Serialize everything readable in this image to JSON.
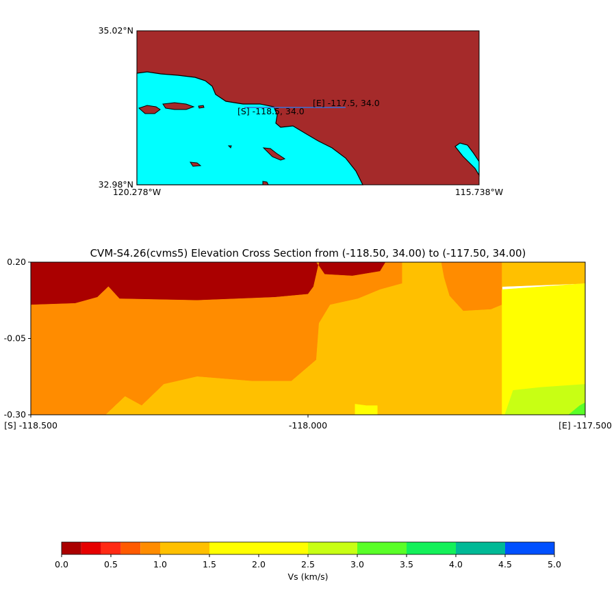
{
  "map": {
    "lat_top": "35.02°N",
    "lat_bottom": "32.98°N",
    "lon_left": "120.278°W",
    "lon_right": "115.738°W",
    "start_label": "[S] -118.5, 34.0",
    "end_label": "[E] -117.5, 34.0",
    "land_color": "#a52a2a",
    "water_color": "#00ffff",
    "line_color": "#3b6fd6"
  },
  "chart_data": {
    "type": "heatmap",
    "title": "CVM-S4.26(cvms5) Elevation Cross Section from (-118.50, 34.00) to (-117.50, 34.00)",
    "x_range": [
      -118.5,
      -117.5
    ],
    "y_range": [
      -0.3,
      0.2
    ],
    "x_tick_labels": [
      "[S] -118.500",
      "-118.000",
      "[E] -117.500"
    ],
    "y_tick_labels": [
      "0.20",
      "-0.05",
      "-0.30"
    ],
    "colorbar": {
      "label": "Vs (km/s)",
      "tick_labels": [
        "0.0",
        "0.5",
        "1.0",
        "1.5",
        "2.0",
        "2.5",
        "3.0",
        "3.5",
        "4.0",
        "4.5",
        "5.0"
      ],
      "bins": [
        {
          "from": 0.0,
          "to": 0.2,
          "color": "#aa0000"
        },
        {
          "from": 0.2,
          "to": 0.4,
          "color": "#e60000"
        },
        {
          "from": 0.4,
          "to": 0.6,
          "color": "#ff2a14"
        },
        {
          "from": 0.6,
          "to": 0.8,
          "color": "#ff5a00"
        },
        {
          "from": 0.8,
          "to": 1.0,
          "color": "#ff8c00"
        },
        {
          "from": 1.0,
          "to": 1.5,
          "color": "#ffc000"
        },
        {
          "from": 1.5,
          "to": 2.5,
          "color": "#ffff00"
        },
        {
          "from": 2.5,
          "to": 3.0,
          "color": "#c8ff14"
        },
        {
          "from": 3.0,
          "to": 3.5,
          "color": "#5aff28"
        },
        {
          "from": 3.5,
          "to": 4.0,
          "color": "#14f05a"
        },
        {
          "from": 4.0,
          "to": 4.5,
          "color": "#00b996"
        },
        {
          "from": 4.5,
          "to": 5.0,
          "color": "#0050ff"
        }
      ]
    },
    "layers": [
      {
        "vs_range": "0.0-0.2",
        "color": "#aa0000",
        "region": "near-surface west and central",
        "points": [
          [
            -118.5,
            0.2
          ],
          [
            -117.98,
            0.2
          ],
          [
            -117.985,
            0.16
          ],
          [
            -117.99,
            0.12
          ],
          [
            -118.0,
            0.095
          ],
          [
            -118.06,
            0.085
          ],
          [
            -118.2,
            0.075
          ],
          [
            -118.34,
            0.08
          ],
          [
            -118.36,
            0.12
          ],
          [
            -118.38,
            0.085
          ],
          [
            -118.42,
            0.065
          ],
          [
            -118.5,
            0.06
          ]
        ]
      },
      {
        "vs_range": "0.0-0.2",
        "color": "#aa0000",
        "region": "near-surface east-central",
        "points": [
          [
            -117.985,
            0.2
          ],
          [
            -117.86,
            0.2
          ],
          [
            -117.87,
            0.17
          ],
          [
            -117.92,
            0.155
          ],
          [
            -117.97,
            0.16
          ]
        ]
      },
      {
        "vs_range": "0.8-1.0",
        "color": "#ff8c00",
        "region": "shallow basin",
        "points": [
          [
            -118.5,
            0.06
          ],
          [
            -118.42,
            0.065
          ],
          [
            -118.38,
            0.085
          ],
          [
            -118.36,
            0.12
          ],
          [
            -118.34,
            0.08
          ],
          [
            -118.2,
            0.075
          ],
          [
            -118.06,
            0.085
          ],
          [
            -118.0,
            0.095
          ],
          [
            -117.99,
            0.12
          ],
          [
            -117.985,
            0.16
          ],
          [
            -117.98,
            0.2
          ],
          [
            -117.985,
            0.2
          ],
          [
            -117.97,
            0.16
          ],
          [
            -117.92,
            0.155
          ],
          [
            -117.87,
            0.17
          ],
          [
            -117.86,
            0.2
          ],
          [
            -117.83,
            0.2
          ],
          [
            -117.83,
            0.13
          ],
          [
            -117.87,
            0.11
          ],
          [
            -117.91,
            0.08
          ],
          [
            -117.96,
            0.06
          ],
          [
            -117.98,
            0.0
          ],
          [
            -117.985,
            -0.12
          ],
          [
            -118.03,
            -0.19
          ],
          [
            -118.1,
            -0.19
          ],
          [
            -118.2,
            -0.175
          ],
          [
            -118.26,
            -0.2
          ],
          [
            -118.3,
            -0.27
          ],
          [
            -118.33,
            -0.24
          ],
          [
            -118.365,
            -0.3
          ],
          [
            -118.5,
            -0.3
          ]
        ]
      },
      {
        "vs_range": "0.8-1.0",
        "color": "#ff8c00",
        "region": "shallow east",
        "points": [
          [
            -117.76,
            0.2
          ],
          [
            -117.65,
            0.2
          ],
          [
            -117.65,
            0.06
          ],
          [
            -117.67,
            0.045
          ],
          [
            -117.72,
            0.04
          ],
          [
            -117.745,
            0.09
          ],
          [
            -117.755,
            0.15
          ]
        ]
      },
      {
        "vs_range": "1.0-1.5",
        "color": "#ffc000",
        "region": "deeper basin fill",
        "points": [
          [
            -118.365,
            -0.3
          ],
          [
            -118.33,
            -0.24
          ],
          [
            -118.3,
            -0.27
          ],
          [
            -118.26,
            -0.2
          ],
          [
            -118.2,
            -0.175
          ],
          [
            -118.1,
            -0.19
          ],
          [
            -118.03,
            -0.19
          ],
          [
            -117.985,
            -0.12
          ],
          [
            -117.98,
            0.0
          ],
          [
            -117.96,
            0.06
          ],
          [
            -117.91,
            0.08
          ],
          [
            -117.87,
            0.11
          ],
          [
            -117.83,
            0.13
          ],
          [
            -117.83,
            0.2
          ],
          [
            -117.76,
            0.2
          ],
          [
            -117.755,
            0.15
          ],
          [
            -117.745,
            0.09
          ],
          [
            -117.72,
            0.04
          ],
          [
            -117.67,
            0.045
          ],
          [
            -117.65,
            0.06
          ],
          [
            -117.65,
            0.2
          ],
          [
            -117.5,
            0.2
          ],
          [
            -117.5,
            0.13
          ],
          [
            -117.65,
            0.12
          ],
          [
            -117.65,
            -0.3
          ]
        ]
      },
      {
        "vs_range": "1.5-2.5",
        "color": "#ffff00",
        "region": "eastern block",
        "points": [
          [
            -117.65,
            0.11
          ],
          [
            -117.5,
            0.13
          ],
          [
            -117.5,
            -0.2
          ],
          [
            -117.58,
            -0.21
          ],
          [
            -117.63,
            -0.22
          ],
          [
            -117.645,
            -0.3
          ],
          [
            -117.65,
            -0.3
          ]
        ]
      },
      {
        "vs_range": "1.5-2.5",
        "color": "#ffff00",
        "region": "small patch",
        "points": [
          [
            -117.915,
            -0.3
          ],
          [
            -117.915,
            -0.265
          ],
          [
            -117.895,
            -0.27
          ],
          [
            -117.875,
            -0.27
          ],
          [
            -117.875,
            -0.3
          ]
        ]
      },
      {
        "vs_range": "2.5-3.0",
        "color": "#c8ff14",
        "region": "eastern deep",
        "points": [
          [
            -117.645,
            -0.3
          ],
          [
            -117.63,
            -0.22
          ],
          [
            -117.58,
            -0.21
          ],
          [
            -117.5,
            -0.2
          ],
          [
            -117.5,
            -0.3
          ]
        ]
      },
      {
        "vs_range": "3.0-3.5",
        "color": "#5aff28",
        "region": "far east deep",
        "points": [
          [
            -117.53,
            -0.3
          ],
          [
            -117.51,
            -0.27
          ],
          [
            -117.5,
            -0.26
          ],
          [
            -117.5,
            -0.3
          ]
        ]
      }
    ]
  }
}
